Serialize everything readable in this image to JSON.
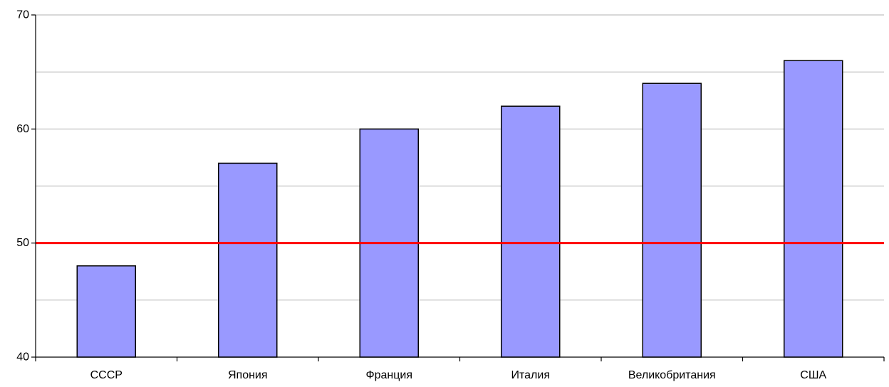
{
  "chart_data": {
    "type": "bar",
    "categories": [
      "СССР",
      "Япония",
      "Франция",
      "Италия",
      "Великобритания",
      "США"
    ],
    "values": [
      48,
      57,
      60,
      62,
      64,
      66
    ],
    "ylim": [
      40,
      70
    ],
    "yticks": [
      40,
      50,
      60,
      70
    ],
    "y_minor_gridlines": [
      45,
      55,
      65
    ],
    "grid": true,
    "reference_line": {
      "value": 50,
      "color": "#ff0000"
    },
    "bar_color": "#9999ff",
    "bar_edge_color": "#000000",
    "gridline_color": "#c0c0c0"
  }
}
